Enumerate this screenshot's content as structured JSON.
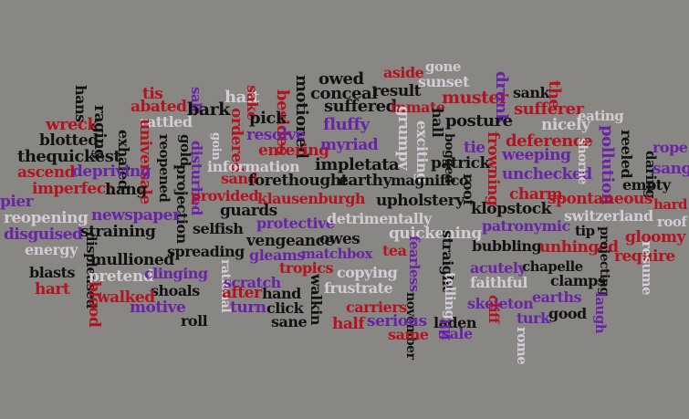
{
  "palette": {
    "background": "#888784",
    "black": "#111111",
    "red": "#b3121f",
    "purple": "#6a23a6",
    "light": "#d3ccd4"
  },
  "words": [
    {
      "text": "gone",
      "c": 3
    },
    {
      "text": "aside",
      "c": 1
    },
    {
      "text": "sunset",
      "c": 3
    },
    {
      "text": "owed",
      "c": 0
    },
    {
      "text": "conceal",
      "c": 0
    },
    {
      "text": "result",
      "c": 0
    },
    {
      "text": "muster",
      "c": 1
    },
    {
      "text": "sank",
      "c": 0
    },
    {
      "text": "the",
      "c": 1
    },
    {
      "text": "drunk",
      "c": 2
    },
    {
      "text": "hans",
      "c": 0
    },
    {
      "text": "tis",
      "c": 1
    },
    {
      "text": "abated",
      "c": 1
    },
    {
      "text": "halt",
      "c": 3
    },
    {
      "text": "sake",
      "c": 1
    },
    {
      "text": "salt",
      "c": 2
    },
    {
      "text": "besides",
      "c": 1
    },
    {
      "text": "motioned",
      "c": 0
    },
    {
      "text": "suffered",
      "c": 0
    },
    {
      "text": "inmate",
      "c": 1
    },
    {
      "text": "sufferer",
      "c": 1
    },
    {
      "text": "bark",
      "c": 0
    },
    {
      "text": "pick",
      "c": 0
    },
    {
      "text": "wreck",
      "c": 1
    },
    {
      "text": "rattled",
      "c": 3
    },
    {
      "text": "fluffy",
      "c": 2
    },
    {
      "text": "eating",
      "c": 3
    },
    {
      "text": "posture",
      "c": 0
    },
    {
      "text": "nicely",
      "c": 3
    },
    {
      "text": "raging",
      "c": 0
    },
    {
      "text": "blotted",
      "c": 0
    },
    {
      "text": "resolve",
      "c": 2
    },
    {
      "text": "grumpy",
      "c": 3
    },
    {
      "text": "hall",
      "c": 0
    },
    {
      "text": "bogged",
      "c": 0
    },
    {
      "text": "deference",
      "c": 1
    },
    {
      "text": "reeled",
      "c": 0
    },
    {
      "text": "rope",
      "c": 2
    },
    {
      "text": "thequickest",
      "c": 0
    },
    {
      "text": "exhaled",
      "c": 0
    },
    {
      "text": "universale",
      "c": 1
    },
    {
      "text": "reopened",
      "c": 0
    },
    {
      "text": "gold",
      "c": 0
    },
    {
      "text": "goin",
      "c": 3
    },
    {
      "text": "ordered",
      "c": 1
    },
    {
      "text": "entering",
      "c": 1
    },
    {
      "text": "myriad",
      "c": 2
    },
    {
      "text": "exciting",
      "c": 3
    },
    {
      "text": "tie",
      "c": 2
    },
    {
      "text": "pollution",
      "c": 2
    },
    {
      "text": "daring",
      "c": 0
    },
    {
      "text": "sang",
      "c": 2
    },
    {
      "text": "ascend",
      "c": 1
    },
    {
      "text": "depriving",
      "c": 2
    },
    {
      "text": "disturbed",
      "c": 2
    },
    {
      "text": "information",
      "c": 3
    },
    {
      "text": "impletata",
      "c": 0
    },
    {
      "text": "patrick",
      "c": 0
    },
    {
      "text": "frowning",
      "c": 1
    },
    {
      "text": "weeping",
      "c": 2
    },
    {
      "text": "sand",
      "c": 1
    },
    {
      "text": "forethought",
      "c": 0
    },
    {
      "text": "earthy",
      "c": 0
    },
    {
      "text": "magnifico",
      "c": 0
    },
    {
      "text": "unchecked",
      "c": 2
    },
    {
      "text": "shorne",
      "c": 3
    },
    {
      "text": "empty",
      "c": 0
    },
    {
      "text": "imperfect",
      "c": 1
    },
    {
      "text": "hang",
      "c": 0
    },
    {
      "text": "projection",
      "c": 0
    },
    {
      "text": "provided",
      "c": 1
    },
    {
      "text": "klausenburgh",
      "c": 1
    },
    {
      "text": "roof",
      "c": 0
    },
    {
      "text": "charm",
      "c": 1
    },
    {
      "text": "upholstery",
      "c": 0
    },
    {
      "text": "klopstock",
      "c": 0
    },
    {
      "text": "spontaneous",
      "c": 1
    },
    {
      "text": "hard",
      "c": 1
    },
    {
      "text": "pier",
      "c": 2
    },
    {
      "text": "guards",
      "c": 0
    },
    {
      "text": "reopening",
      "c": 3
    },
    {
      "text": "newspaper",
      "c": 2
    },
    {
      "text": "protective",
      "c": 2
    },
    {
      "text": "detrimentally",
      "c": 3
    },
    {
      "text": "switzerland",
      "c": 3
    },
    {
      "text": "roof",
      "c": 3
    },
    {
      "text": "tip",
      "c": 0
    },
    {
      "text": "selfish",
      "c": 0
    },
    {
      "text": "patronymic",
      "c": 2
    },
    {
      "text": "gloomy",
      "c": 1
    },
    {
      "text": "disguised",
      "c": 2
    },
    {
      "text": "straining",
      "c": 0
    },
    {
      "text": "vengeance",
      "c": 0
    },
    {
      "text": "gleams",
      "c": 2
    },
    {
      "text": "owes",
      "c": 0
    },
    {
      "text": "quickening",
      "c": 3
    },
    {
      "text": "bubbling",
      "c": 0
    },
    {
      "text": "unhinged",
      "c": 1
    },
    {
      "text": "energy",
      "c": 3
    },
    {
      "text": "displeased",
      "c": 0
    },
    {
      "text": "matchbox",
      "c": 2
    },
    {
      "text": "tea",
      "c": 1
    },
    {
      "text": "fearless",
      "c": 2
    },
    {
      "text": "straight",
      "c": 0
    },
    {
      "text": "require",
      "c": 1
    },
    {
      "text": "mullioned",
      "c": 0
    },
    {
      "text": "spreading",
      "c": 0
    },
    {
      "text": "tropics",
      "c": 1
    },
    {
      "text": "projecting",
      "c": 0
    },
    {
      "text": "blasts",
      "c": 0
    },
    {
      "text": "pretend",
      "c": 3
    },
    {
      "text": "clinging",
      "c": 2
    },
    {
      "text": "rational",
      "c": 3
    },
    {
      "text": "copying",
      "c": 3
    },
    {
      "text": "acutely",
      "c": 2
    },
    {
      "text": "chapelle",
      "c": 0
    },
    {
      "text": "resume",
      "c": 3
    },
    {
      "text": "hart",
      "c": 1
    },
    {
      "text": "blood",
      "c": 1
    },
    {
      "text": "shoals",
      "c": 0
    },
    {
      "text": "scratch",
      "c": 2
    },
    {
      "text": "walkin",
      "c": 0
    },
    {
      "text": "frustrate",
      "c": 3
    },
    {
      "text": "telling",
      "c": 3
    },
    {
      "text": "faithful",
      "c": 3
    },
    {
      "text": "clamps",
      "c": 0
    },
    {
      "text": "walked",
      "c": 1
    },
    {
      "text": "after",
      "c": 1
    },
    {
      "text": "hand",
      "c": 0
    },
    {
      "text": "november",
      "c": 0
    },
    {
      "text": "earths",
      "c": 2
    },
    {
      "text": "motive",
      "c": 2
    },
    {
      "text": "turn",
      "c": 2
    },
    {
      "text": "click",
      "c": 0
    },
    {
      "text": "carriers",
      "c": 1
    },
    {
      "text": "skeleton",
      "c": 2
    },
    {
      "text": "cliff",
      "c": 1
    },
    {
      "text": "laugh",
      "c": 2
    },
    {
      "text": "roll",
      "c": 0
    },
    {
      "text": "sane",
      "c": 0
    },
    {
      "text": "half",
      "c": 1
    },
    {
      "text": "serious",
      "c": 2
    },
    {
      "text": "laden",
      "c": 0
    },
    {
      "text": "turk",
      "c": 2
    },
    {
      "text": "good",
      "c": 0
    },
    {
      "text": "flit",
      "c": 2
    },
    {
      "text": "same",
      "c": 1
    },
    {
      "text": "sale",
      "c": 2
    },
    {
      "text": "rome",
      "c": 3
    }
  ]
}
